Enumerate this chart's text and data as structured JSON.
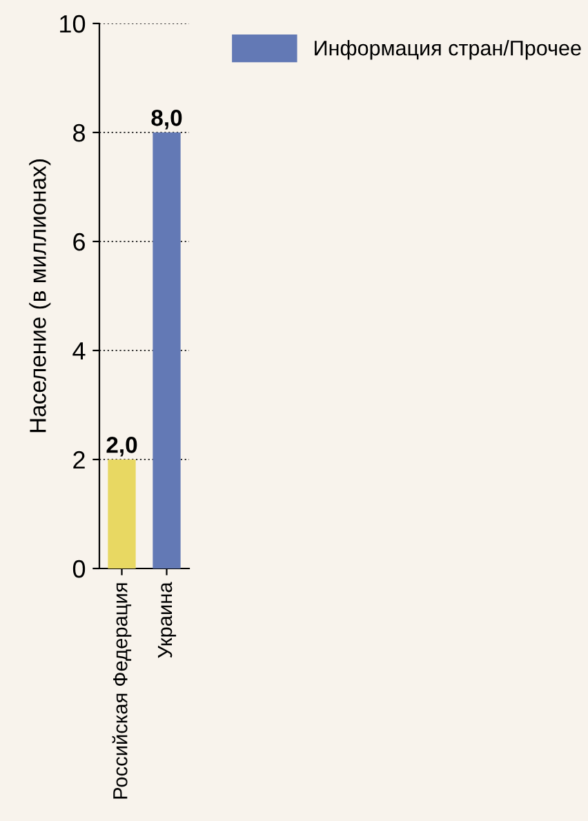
{
  "chart_data": {
    "type": "bar",
    "ylabel": "Население (в миллионах)",
    "categories": [
      "Российская Федерация",
      "Украина"
    ],
    "series": [
      {
        "name": "Информация стран/Прочее",
        "color": "#6379b5",
        "values": [
          null,
          8.0
        ],
        "value_labels": [
          null,
          "8,0"
        ]
      },
      {
        "color": "#e8d862",
        "values": [
          2.0,
          null
        ],
        "value_labels": [
          "2,0",
          null
        ]
      }
    ],
    "ylim": [
      0,
      10
    ],
    "yticks": [
      0,
      2,
      4,
      6,
      8,
      10
    ],
    "grid": "y",
    "legend": "top right"
  }
}
